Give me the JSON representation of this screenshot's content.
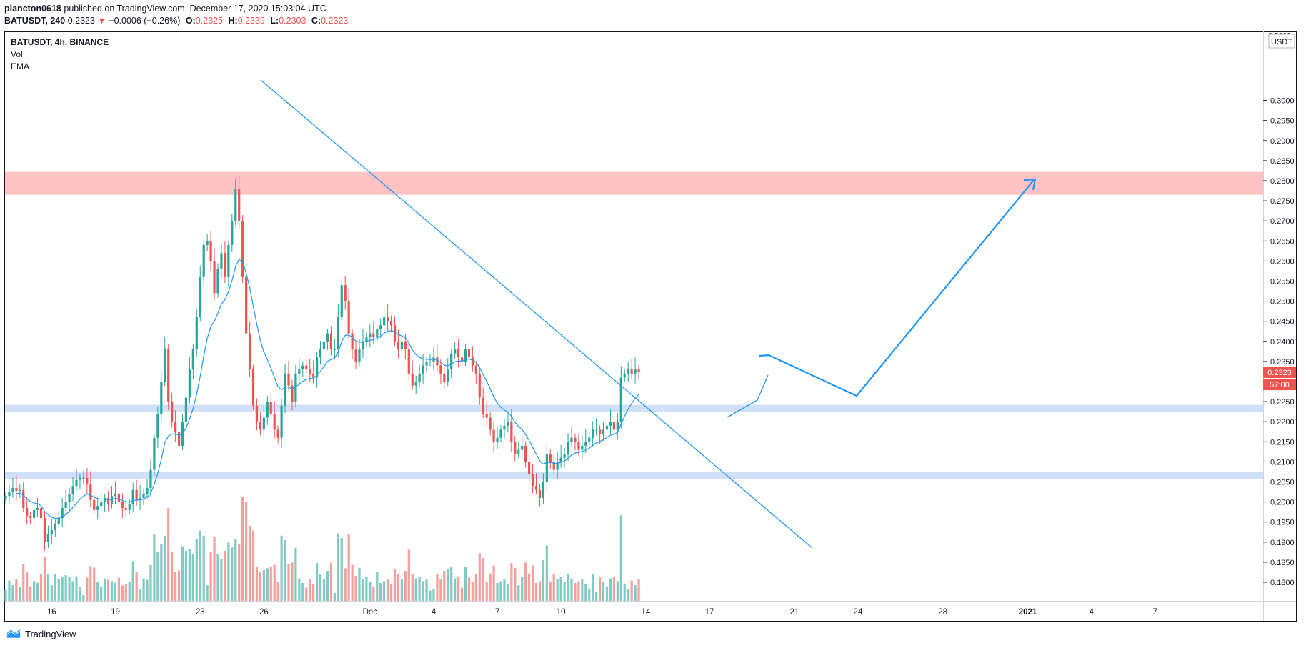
{
  "header": {
    "author": "plancton0618",
    "published_text": "published on TradingView.com, December 17, 2020 15:03:04 UTC"
  },
  "ohlc_bar": {
    "symbol": "BATUSDT, 240",
    "last": "0.2323",
    "change": "−0.0006 (−0.26%)",
    "open_label": "O:",
    "open": "0.2325",
    "high_label": "H:",
    "high": "0.2339",
    "low_label": "L:",
    "low": "0.2303",
    "close_label": "C:",
    "close": "0.2323"
  },
  "legend": {
    "title": "BATUSDT, 4h, BINANCE",
    "vol": "Vol",
    "ema": "EMA"
  },
  "price_axis": {
    "currency": "USDT",
    "last_price_tag": "0.2323",
    "countdown_tag": "57:00"
  },
  "footer": {
    "brand": "TradingView"
  },
  "colors": {
    "up": "#26a69a",
    "down": "#ef5350",
    "vol_up": "#80cbc4",
    "vol_down": "#f4a09d",
    "ema": "#2196f3",
    "drawing": "#2196f3",
    "resistance_zone": "#ffb8b8",
    "support_zone": "#c8dbf7"
  },
  "chart_data": {
    "type": "candlestick",
    "title": "BATUSDT, 4h, BINANCE",
    "ylim": [
      0.18,
      0.3
    ],
    "y_ticks": [
      "0.1800",
      "0.1850",
      "0.1900",
      "0.1950",
      "0.2000",
      "0.2050",
      "0.2100",
      "0.2150",
      "0.2200",
      "0.2250",
      "0.2300",
      "0.2350",
      "0.2400",
      "0.2450",
      "0.2500",
      "0.2550",
      "0.2600",
      "0.2650",
      "0.2700",
      "0.2750",
      "0.2800",
      "0.2850",
      "0.2900",
      "0.2950",
      "0.3000"
    ],
    "x_tick_labels": [
      {
        "label": "16",
        "bar": 13
      },
      {
        "label": "19",
        "bar": 31
      },
      {
        "label": "23",
        "bar": 55
      },
      {
        "label": "26",
        "bar": 73
      },
      {
        "label": "Dec",
        "bar": 103
      },
      {
        "label": "4",
        "bar": 121
      },
      {
        "label": "7",
        "bar": 139
      },
      {
        "label": "10",
        "bar": 157
      },
      {
        "label": "14",
        "bar": 181
      },
      {
        "label": "17",
        "bar": 199
      },
      {
        "label": "21",
        "bar": 223
      },
      {
        "label": "24",
        "bar": 241
      },
      {
        "label": "28",
        "bar": 265
      },
      {
        "label": "2021",
        "bar": 289,
        "bold": true
      },
      {
        "label": "4",
        "bar": 307
      },
      {
        "label": "7",
        "bar": 325
      }
    ],
    "bar_interval": "4h",
    "closes": [
      0.2015,
      0.2025,
      0.2035,
      0.2028,
      0.203,
      0.1985,
      0.1965,
      0.196,
      0.198,
      0.1985,
      0.196,
      0.19,
      0.192,
      0.193,
      0.1945,
      0.196,
      0.1985,
      0.2,
      0.202,
      0.204,
      0.2055,
      0.206,
      0.206,
      0.2045,
      0.2005,
      0.198,
      0.199,
      0.2,
      0.201,
      0.1995,
      0.2015,
      0.202,
      0.2,
      0.1985,
      0.198,
      0.1995,
      0.203,
      0.2005,
      0.201,
      0.202,
      0.2035,
      0.208,
      0.216,
      0.222,
      0.23,
      0.238,
      0.225,
      0.22,
      0.2175,
      0.214,
      0.22,
      0.226,
      0.233,
      0.238,
      0.246,
      0.256,
      0.264,
      0.265,
      0.26,
      0.252,
      0.258,
      0.262,
      0.256,
      0.264,
      0.27,
      0.278,
      0.27,
      0.256,
      0.242,
      0.233,
      0.224,
      0.22,
      0.218,
      0.221,
      0.225,
      0.222,
      0.218,
      0.216,
      0.224,
      0.232,
      0.229,
      0.225,
      0.232,
      0.233,
      0.234,
      0.233,
      0.232,
      0.231,
      0.236,
      0.238,
      0.24,
      0.242,
      0.238,
      0.238,
      0.246,
      0.254,
      0.25,
      0.242,
      0.238,
      0.235,
      0.238,
      0.24,
      0.241,
      0.242,
      0.241,
      0.243,
      0.244,
      0.246,
      0.245,
      0.244,
      0.24,
      0.238,
      0.24,
      0.238,
      0.232,
      0.229,
      0.23,
      0.232,
      0.234,
      0.235,
      0.235,
      0.236,
      0.234,
      0.232,
      0.23,
      0.233,
      0.237,
      0.238,
      0.236,
      0.235,
      0.238,
      0.236,
      0.234,
      0.232,
      0.226,
      0.222,
      0.221,
      0.218,
      0.215,
      0.216,
      0.218,
      0.219,
      0.22,
      0.215,
      0.212,
      0.213,
      0.214,
      0.21,
      0.207,
      0.204,
      0.203,
      0.201,
      0.205,
      0.212,
      0.21,
      0.208,
      0.21,
      0.211,
      0.212,
      0.215,
      0.216,
      0.215,
      0.213,
      0.214,
      0.215,
      0.216,
      0.218,
      0.218,
      0.217,
      0.218,
      0.219,
      0.22,
      0.218,
      0.22,
      0.231,
      0.232,
      0.233,
      0.232,
      0.233,
      0.2323
    ]
  }
}
